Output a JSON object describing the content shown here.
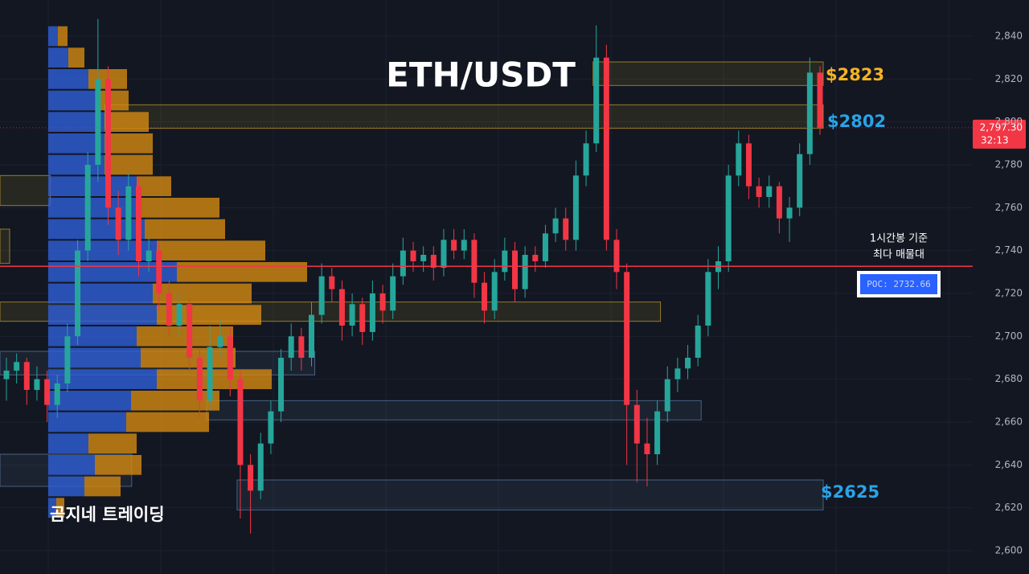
{
  "chart_data": {
    "type": "candlestick",
    "title": "ETH/USDT",
    "watermark": "곰지네 트레이딩",
    "ylim": [
      2595,
      2850
    ],
    "yticks": [
      {
        "value": 2600,
        "label": "2,600"
      },
      {
        "value": 2620,
        "label": "2,620"
      },
      {
        "value": 2640,
        "label": "2,640"
      },
      {
        "value": 2660,
        "label": "2,660"
      },
      {
        "value": 2680,
        "label": "2,680"
      },
      {
        "value": 2700,
        "label": "2,700"
      },
      {
        "value": 2720,
        "label": "2,720"
      },
      {
        "value": 2740,
        "label": "2,740"
      },
      {
        "value": 2760,
        "label": "2,760"
      },
      {
        "value": 2780,
        "label": "2,780"
      },
      {
        "value": 2800,
        "label": "2,800"
      },
      {
        "value": 2820,
        "label": "2,820"
      },
      {
        "value": 2840,
        "label": "2,840"
      }
    ],
    "up_color": "#26a69a",
    "down_color": "#f23645",
    "candles": [
      [
        2680,
        2690,
        2670,
        2684
      ],
      [
        2684,
        2692,
        2678,
        2688
      ],
      [
        2688,
        2690,
        2668,
        2675
      ],
      [
        2675,
        2686,
        2670,
        2680
      ],
      [
        2680,
        2684,
        2660,
        2668
      ],
      [
        2668,
        2682,
        2662,
        2678
      ],
      [
        2678,
        2706,
        2674,
        2700
      ],
      [
        2700,
        2745,
        2696,
        2740
      ],
      [
        2740,
        2786,
        2735,
        2780
      ],
      [
        2780,
        2848,
        2772,
        2820
      ],
      [
        2820,
        2826,
        2752,
        2760
      ],
      [
        2760,
        2768,
        2738,
        2745
      ],
      [
        2745,
        2776,
        2740,
        2770
      ],
      [
        2770,
        2774,
        2728,
        2735
      ],
      [
        2735,
        2746,
        2730,
        2740
      ],
      [
        2740,
        2744,
        2712,
        2720
      ],
      [
        2720,
        2726,
        2700,
        2705
      ],
      [
        2705,
        2720,
        2700,
        2715
      ],
      [
        2715,
        2718,
        2684,
        2690
      ],
      [
        2690,
        2694,
        2662,
        2670
      ],
      [
        2670,
        2705,
        2666,
        2695
      ],
      [
        2695,
        2708,
        2690,
        2700
      ],
      [
        2700,
        2704,
        2672,
        2680
      ],
      [
        2680,
        2684,
        2615,
        2640
      ],
      [
        2640,
        2645,
        2608,
        2628
      ],
      [
        2628,
        2655,
        2624,
        2650
      ],
      [
        2650,
        2670,
        2645,
        2665
      ],
      [
        2665,
        2694,
        2660,
        2690
      ],
      [
        2690,
        2706,
        2684,
        2700
      ],
      [
        2700,
        2704,
        2684,
        2690
      ],
      [
        2690,
        2716,
        2686,
        2710
      ],
      [
        2710,
        2734,
        2706,
        2728
      ],
      [
        2728,
        2732,
        2716,
        2722
      ],
      [
        2722,
        2726,
        2698,
        2705
      ],
      [
        2705,
        2720,
        2700,
        2715
      ],
      [
        2715,
        2718,
        2696,
        2702
      ],
      [
        2702,
        2726,
        2698,
        2720
      ],
      [
        2720,
        2724,
        2706,
        2712
      ],
      [
        2712,
        2734,
        2708,
        2728
      ],
      [
        2728,
        2746,
        2724,
        2740
      ],
      [
        2740,
        2744,
        2730,
        2735
      ],
      [
        2735,
        2742,
        2730,
        2738
      ],
      [
        2738,
        2742,
        2726,
        2732
      ],
      [
        2732,
        2750,
        2728,
        2745
      ],
      [
        2745,
        2750,
        2736,
        2740
      ],
      [
        2740,
        2750,
        2736,
        2745
      ],
      [
        2745,
        2748,
        2718,
        2725
      ],
      [
        2725,
        2730,
        2706,
        2712
      ],
      [
        2712,
        2736,
        2708,
        2730
      ],
      [
        2730,
        2746,
        2726,
        2740
      ],
      [
        2740,
        2744,
        2716,
        2722
      ],
      [
        2722,
        2742,
        2718,
        2738
      ],
      [
        2738,
        2742,
        2730,
        2735
      ],
      [
        2735,
        2752,
        2732,
        2748
      ],
      [
        2748,
        2760,
        2744,
        2755
      ],
      [
        2755,
        2760,
        2740,
        2745
      ],
      [
        2745,
        2782,
        2740,
        2775
      ],
      [
        2775,
        2796,
        2770,
        2790
      ],
      [
        2790,
        2845,
        2786,
        2830
      ],
      [
        2830,
        2836,
        2740,
        2745
      ],
      [
        2745,
        2750,
        2722,
        2730
      ],
      [
        2730,
        2734,
        2640,
        2668
      ],
      [
        2668,
        2675,
        2632,
        2650
      ],
      [
        2650,
        2662,
        2630,
        2645
      ],
      [
        2645,
        2670,
        2640,
        2665
      ],
      [
        2665,
        2686,
        2660,
        2680
      ],
      [
        2680,
        2690,
        2674,
        2685
      ],
      [
        2685,
        2696,
        2680,
        2690
      ],
      [
        2690,
        2710,
        2686,
        2705
      ],
      [
        2705,
        2736,
        2700,
        2730
      ],
      [
        2730,
        2742,
        2722,
        2735
      ],
      [
        2735,
        2780,
        2730,
        2775
      ],
      [
        2775,
        2796,
        2770,
        2790
      ],
      [
        2790,
        2794,
        2764,
        2770
      ],
      [
        2770,
        2774,
        2760,
        2765
      ],
      [
        2765,
        2775,
        2760,
        2770
      ],
      [
        2770,
        2772,
        2748,
        2755
      ],
      [
        2755,
        2765,
        2744,
        2760
      ],
      [
        2760,
        2790,
        2756,
        2785
      ],
      [
        2785,
        2830,
        2780,
        2823
      ],
      [
        2823,
        2826,
        2794,
        2797.3
      ]
    ],
    "volume_profile": {
      "row_top": [
        2845,
        2835,
        2825,
        2815,
        2805,
        2795,
        2785,
        2775,
        2765,
        2755,
        2745,
        2735,
        2725,
        2715,
        2705,
        2695,
        2685,
        2675,
        2665,
        2655,
        2645,
        2635,
        2625
      ],
      "buy": [
        12,
        25,
        50,
        60,
        70,
        70,
        70,
        110,
        110,
        120,
        135,
        160,
        130,
        135,
        110,
        115,
        135,
        103,
        97,
        50,
        58,
        45,
        10
      ],
      "sell": [
        12,
        20,
        48,
        40,
        55,
        60,
        60,
        43,
        103,
        100,
        135,
        162,
        123,
        130,
        120,
        118,
        143,
        110,
        103,
        60,
        58,
        45,
        10
      ],
      "buy_color": "#2f5fd8",
      "sell_color": "#d48a12"
    },
    "zones": [
      {
        "low": 2817,
        "high": 2828,
        "from": 58,
        "to": 80,
        "color": "#c9a227"
      },
      {
        "low": 2797,
        "high": 2808,
        "from": 10,
        "to": 80,
        "color": "#c9a227"
      },
      {
        "low": 2761,
        "high": 2775,
        "from": 0,
        "to": 4,
        "color": "#c9a227"
      },
      {
        "low": 2734,
        "high": 2750,
        "from": 0,
        "to": 0,
        "color": "#c9a227"
      },
      {
        "low": 2707,
        "high": 2716,
        "from": 0,
        "to": 64,
        "color": "#c9a227"
      },
      {
        "low": 2682,
        "high": 2693,
        "from": 0,
        "to": 30,
        "color": "#5b7fa6"
      },
      {
        "low": 2661,
        "high": 2670,
        "from": 20,
        "to": 68,
        "color": "#5b7fa6"
      },
      {
        "low": 2619,
        "high": 2633,
        "from": 23,
        "to": 80,
        "color": "#5b7fa6"
      },
      {
        "low": 2630,
        "high": 2645,
        "from": 0,
        "to": 12,
        "color": "#5b7fa6"
      }
    ],
    "poc": {
      "value": 2732.66,
      "label": "POC: 2732.66",
      "note": [
        "1시간봉 기준",
        "최다 매물대"
      ]
    },
    "last_price": {
      "value": 2797.3,
      "label": "2,797.30"
    },
    "countdown": "32:13",
    "annotations": [
      {
        "text": "$2823",
        "color": "#f5b324"
      },
      {
        "text": "$2802",
        "color": "#29a3e8"
      },
      {
        "text": "$2625",
        "color": "#29a3e8"
      }
    ]
  }
}
